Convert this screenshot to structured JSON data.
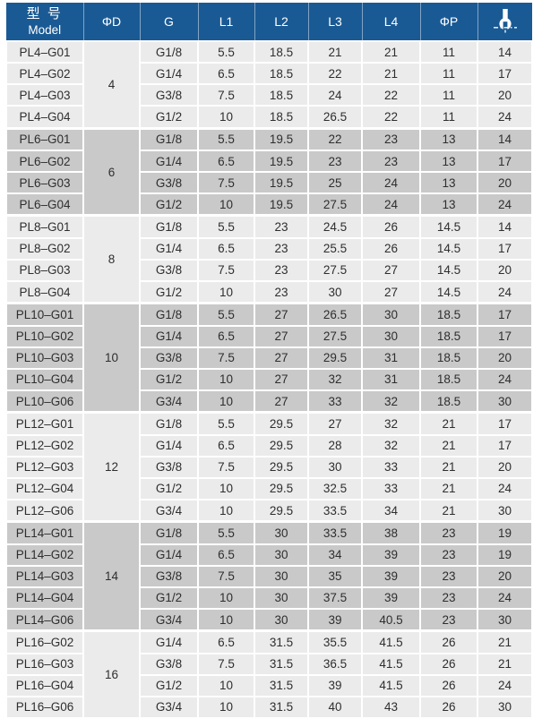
{
  "colors": {
    "header_bg": "#1a5a94",
    "header_text": "#ffffff",
    "row_light": "#ebebeb",
    "row_dark": "#c9c9c9",
    "text": "#2e2e2e",
    "border": "#ffffff"
  },
  "table": {
    "header": {
      "model_zh": "型 号",
      "model_en": "Model",
      "d": "ΦD",
      "g": "G",
      "l1": "L1",
      "l2": "L2",
      "l3": "L3",
      "l4": "L4",
      "p": "ΦP",
      "wrench_icon": "wrench-size-icon"
    },
    "groups": [
      {
        "d": "4",
        "shade": "light",
        "rows": [
          [
            "PL4–G01",
            "G1/8",
            "5.5",
            "18.5",
            "21",
            "21",
            "11",
            "14"
          ],
          [
            "PL4–G02",
            "G1/4",
            "6.5",
            "18.5",
            "22",
            "21",
            "11",
            "17"
          ],
          [
            "PL4–G03",
            "G3/8",
            "7.5",
            "18.5",
            "24",
            "22",
            "11",
            "20"
          ],
          [
            "PL4–G04",
            "G1/2",
            "10",
            "18.5",
            "26.5",
            "22",
            "11",
            "24"
          ]
        ]
      },
      {
        "d": "6",
        "shade": "dark",
        "rows": [
          [
            "PL6–G01",
            "G1/8",
            "5.5",
            "19.5",
            "22",
            "23",
            "13",
            "14"
          ],
          [
            "PL6–G02",
            "G1/4",
            "6.5",
            "19.5",
            "23",
            "23",
            "13",
            "17"
          ],
          [
            "PL6–G03",
            "G3/8",
            "7.5",
            "19.5",
            "25",
            "24",
            "13",
            "20"
          ],
          [
            "PL6–G04",
            "G1/2",
            "10",
            "19.5",
            "27.5",
            "24",
            "13",
            "24"
          ]
        ]
      },
      {
        "d": "8",
        "shade": "light",
        "rows": [
          [
            "PL8–G01",
            "G1/8",
            "5.5",
            "23",
            "24.5",
            "26",
            "14.5",
            "14"
          ],
          [
            "PL8–G02",
            "G1/4",
            "6.5",
            "23",
            "25.5",
            "26",
            "14.5",
            "17"
          ],
          [
            "PL8–G03",
            "G3/8",
            "7.5",
            "23",
            "27.5",
            "27",
            "14.5",
            "20"
          ],
          [
            "PL8–G04",
            "G1/2",
            "10",
            "23",
            "30",
            "27",
            "14.5",
            "24"
          ]
        ]
      },
      {
        "d": "10",
        "shade": "dark",
        "rows": [
          [
            "PL10–G01",
            "G1/8",
            "5.5",
            "27",
            "26.5",
            "30",
            "18.5",
            "17"
          ],
          [
            "PL10–G02",
            "G1/4",
            "6.5",
            "27",
            "27.5",
            "30",
            "18.5",
            "17"
          ],
          [
            "PL10–G03",
            "G3/8",
            "7.5",
            "27",
            "29.5",
            "31",
            "18.5",
            "20"
          ],
          [
            "PL10–G04",
            "G1/2",
            "10",
            "27",
            "32",
            "31",
            "18.5",
            "24"
          ],
          [
            "PL10–G06",
            "G3/4",
            "10",
            "27",
            "33",
            "32",
            "18.5",
            "30"
          ]
        ]
      },
      {
        "d": "12",
        "shade": "light",
        "rows": [
          [
            "PL12–G01",
            "G1/8",
            "5.5",
            "29.5",
            "27",
            "32",
            "21",
            "17"
          ],
          [
            "PL12–G02",
            "G1/4",
            "6.5",
            "29.5",
            "28",
            "32",
            "21",
            "17"
          ],
          [
            "PL12–G03",
            "G3/8",
            "7.5",
            "29.5",
            "30",
            "33",
            "21",
            "20"
          ],
          [
            "PL12–G04",
            "G1/2",
            "10",
            "29.5",
            "32.5",
            "33",
            "21",
            "24"
          ],
          [
            "PL12–G06",
            "G3/4",
            "10",
            "29.5",
            "33.5",
            "34",
            "21",
            "30"
          ]
        ]
      },
      {
        "d": "14",
        "shade": "dark",
        "rows": [
          [
            "PL14–G01",
            "G1/8",
            "5.5",
            "30",
            "33.5",
            "38",
            "23",
            "19"
          ],
          [
            "PL14–G02",
            "G1/4",
            "6.5",
            "30",
            "34",
            "39",
            "23",
            "19"
          ],
          [
            "PL14–G03",
            "G3/8",
            "7.5",
            "30",
            "35",
            "39",
            "23",
            "20"
          ],
          [
            "PL14–G04",
            "G1/2",
            "10",
            "30",
            "37.5",
            "39",
            "23",
            "24"
          ],
          [
            "PL14–G06",
            "G3/4",
            "10",
            "30",
            "39",
            "40.5",
            "23",
            "30"
          ]
        ]
      },
      {
        "d": "16",
        "shade": "light",
        "rows": [
          [
            "PL16–G02",
            "G1/4",
            "6.5",
            "31.5",
            "35.5",
            "41.5",
            "26",
            "21"
          ],
          [
            "PL16–G03",
            "G3/8",
            "7.5",
            "31.5",
            "36.5",
            "41.5",
            "26",
            "21"
          ],
          [
            "PL16–G04",
            "G1/2",
            "10",
            "31.5",
            "39",
            "41.5",
            "26",
            "24"
          ],
          [
            "PL16–G06",
            "G3/4",
            "10",
            "31.5",
            "40",
            "43",
            "26",
            "30"
          ]
        ]
      }
    ]
  }
}
